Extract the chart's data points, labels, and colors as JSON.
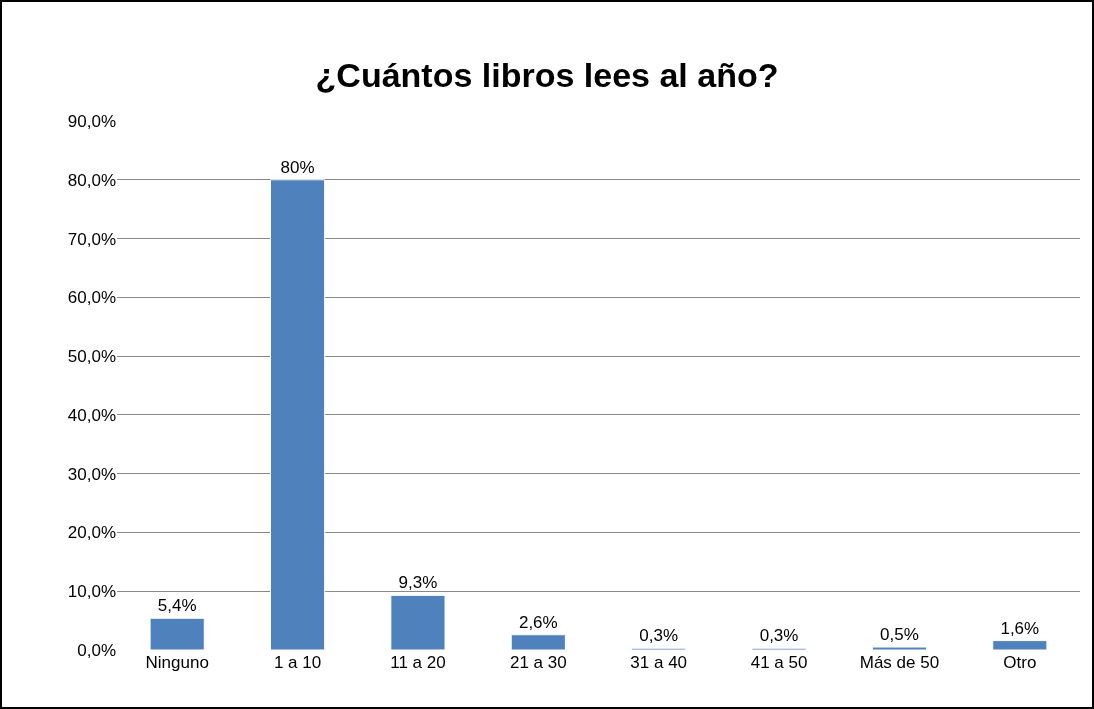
{
  "chart_data": {
    "type": "bar",
    "title": "¿Cuántos libros lees al año?",
    "categories": [
      "Ninguno",
      "1 a 10",
      "11 a 20",
      "21 a 30",
      "31 a 40",
      "41 a 50",
      "Más de 50",
      "Otro"
    ],
    "values": [
      5.4,
      80,
      9.3,
      2.6,
      0.3,
      0.3,
      0.5,
      1.6
    ],
    "value_labels": [
      "5,4%",
      "80%",
      "9,3%",
      "2,6%",
      "0,3%",
      "0,3%",
      "0,5%",
      "1,6%"
    ],
    "color": "#4f81bd",
    "ylim": [
      0,
      90
    ],
    "yticks": [
      {
        "value": 0,
        "label": "0,0%"
      },
      {
        "value": 10,
        "label": "10,0%"
      },
      {
        "value": 20,
        "label": "20,0%"
      },
      {
        "value": 30,
        "label": "30,0%"
      },
      {
        "value": 40,
        "label": "40,0%"
      },
      {
        "value": 50,
        "label": "50,0%"
      },
      {
        "value": 60,
        "label": "60,0%"
      },
      {
        "value": 70,
        "label": "70,0%"
      },
      {
        "value": 80,
        "label": "80,0%"
      },
      {
        "value": 90,
        "label": "90,0%"
      }
    ],
    "grid": "y",
    "legend": false
  }
}
